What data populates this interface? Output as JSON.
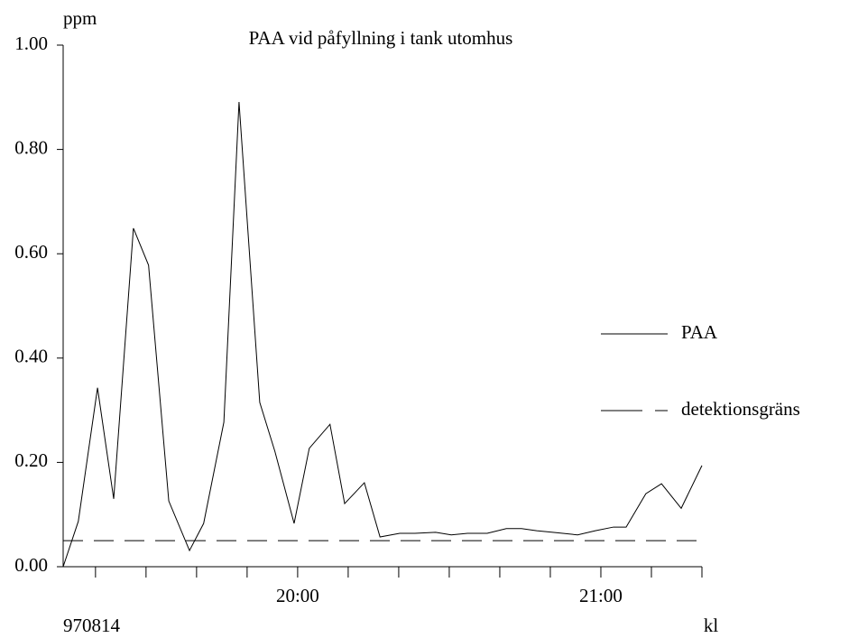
{
  "chart_data": {
    "type": "line",
    "title": "PAA vid påfyllning i tank utomhus",
    "ylabel": "ppm",
    "xlabel": "kl",
    "annotation": "970814",
    "xlim": [
      1153.6,
      1280
    ],
    "xticks": [
      {
        "value": 1200,
        "label": "20:00"
      },
      {
        "value": 1260,
        "label": "21:00"
      }
    ],
    "xminor_ticks": [
      1160,
      1170,
      1180,
      1190,
      1200,
      1210,
      1220,
      1230,
      1240,
      1250,
      1260,
      1270,
      1280
    ],
    "ylim": [
      0,
      1
    ],
    "yticks": [
      {
        "value": 0,
        "label": "0.00"
      },
      {
        "value": 0.2,
        "label": "0.20"
      },
      {
        "value": 0.4,
        "label": "0.40"
      },
      {
        "value": 0.6,
        "label": "0.60"
      },
      {
        "value": 0.8,
        "label": "0.80"
      },
      {
        "value": 1,
        "label": "1.00"
      }
    ],
    "grid": false,
    "series": [
      {
        "name": "PAA",
        "color": "#000000",
        "x": [
          1153.6,
          1156.6,
          1160.4,
          1163.6,
          1167.5,
          1170.5,
          1174.5,
          1178.6,
          1181.4,
          1185.4,
          1188.4,
          1192.5,
          1195.5,
          1199.3,
          1202.3,
          1206.4,
          1209.3,
          1213.2,
          1216.3,
          1220.2,
          1223.2,
          1227.3,
          1230.4,
          1233.6,
          1237.5,
          1241.3,
          1244.3,
          1247.3,
          1250.5,
          1255.4,
          1258.9,
          1262.5,
          1265.0,
          1268.9,
          1272.0,
          1275.9,
          1280
        ],
        "values": [
          0,
          0.087,
          0.343,
          0.13,
          0.649,
          0.578,
          0.126,
          0.031,
          0.083,
          0.277,
          0.891,
          0.315,
          0.221,
          0.083,
          0.227,
          0.273,
          0.121,
          0.161,
          0.057,
          0.064,
          0.064,
          0.066,
          0.061,
          0.064,
          0.064,
          0.073,
          0.073,
          0.069,
          0.066,
          0.061,
          0.069,
          0.076,
          0.076,
          0.14,
          0.159,
          0.112,
          0.194
        ]
      }
    ],
    "threshold": {
      "name": "detektionsgräns",
      "value": 0.05,
      "color": "#000000",
      "dashed": true
    }
  }
}
